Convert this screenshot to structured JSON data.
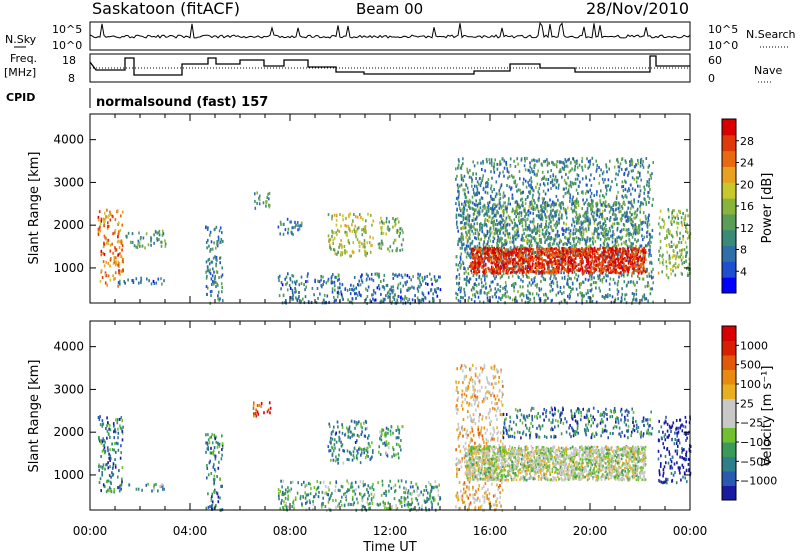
{
  "header": {
    "station": "Saskatoon (fitACF)",
    "beam": "Beam 00",
    "date": "28/Nov/2010"
  },
  "top_panels": {
    "nsky_label": "N.Sky",
    "nsearch_label": "N.Search",
    "freq_label_line1": "Freq.",
    "freq_label_line2": "[MHz]",
    "nave_label": "Nave",
    "cpid_label": "CPID",
    "cpid_text": "normalsound (fast) 157",
    "noise_ticks": [
      "10^5",
      "10^0"
    ],
    "freq_ticks": [
      "18",
      "8"
    ],
    "nave_ticks": [
      "60",
      "0"
    ],
    "colors": {
      "line": "#000000"
    }
  },
  "chart_data": [
    {
      "type": "heatmap",
      "name": "power-panel",
      "xlabel": "",
      "ylabel": "Slant Range [km]",
      "xlim": [
        0,
        24
      ],
      "ylim": [
        180,
        4600
      ],
      "y_ticks": [
        "1000",
        "2000",
        "3000",
        "4000"
      ],
      "y_tick_values": [
        1000,
        2000,
        3000,
        4000
      ],
      "colorbar_label": "Power [dB]",
      "colorbar_ticks": [
        "28",
        "24",
        "20",
        "16",
        "12",
        "8",
        "4"
      ],
      "colorbar_colors": [
        "#0000ff",
        "#1f4fd0",
        "#2f6fa8",
        "#3a8a78",
        "#5a9e55",
        "#88b43c",
        "#c8c82a",
        "#e8a020",
        "#e86a10",
        "#e03a0a",
        "#d80000"
      ],
      "scatter_regions": [
        {
          "x": [
            0.3,
            1.3
          ],
          "y": [
            600,
            2400
          ],
          "level": 0.75
        },
        {
          "x": [
            1.1,
            3.0
          ],
          "y": [
            650,
            820
          ],
          "level": 0.25
        },
        {
          "x": [
            1.4,
            3.0
          ],
          "y": [
            1500,
            1900
          ],
          "level": 0.35
        },
        {
          "x": [
            6.5,
            7.2
          ],
          "y": [
            2400,
            2800
          ],
          "level": 0.35
        },
        {
          "x": [
            4.6,
            5.3
          ],
          "y": [
            200,
            2000
          ],
          "level": 0.3
        },
        {
          "x": [
            7.5,
            8.5
          ],
          "y": [
            1800,
            2200
          ],
          "level": 0.3
        },
        {
          "x": [
            9.5,
            11.3
          ],
          "y": [
            1300,
            2300
          ],
          "level": 0.55
        },
        {
          "x": [
            11.5,
            12.5
          ],
          "y": [
            1400,
            2200
          ],
          "level": 0.45
        },
        {
          "x": [
            7.5,
            14.0
          ],
          "y": [
            200,
            900
          ],
          "level": 0.25
        },
        {
          "x": [
            14.8,
            22.0
          ],
          "y": [
            1300,
            2600
          ],
          "level": 0.4
        },
        {
          "x": [
            14.6,
            22.5
          ],
          "y": [
            200,
            3600
          ],
          "level": 0.3
        },
        {
          "x": [
            22.7,
            24.0
          ],
          "y": [
            800,
            2400
          ],
          "level": 0.5
        }
      ],
      "strong_band": {
        "x": [
          15.2,
          22.2
        ],
        "y": [
          900,
          1500
        ],
        "level": 0.9
      }
    },
    {
      "type": "heatmap",
      "name": "velocity-panel",
      "xlabel": "Time UT",
      "ylabel": "Slant Range [km]",
      "xlim": [
        0,
        24
      ],
      "ylim": [
        180,
        4600
      ],
      "x_ticks": [
        "00:00",
        "04:00",
        "08:00",
        "12:00",
        "16:00",
        "20:00",
        "00:00"
      ],
      "x_tick_values": [
        0,
        4,
        8,
        12,
        16,
        20,
        24
      ],
      "y_ticks": [
        "1000",
        "2000",
        "3000",
        "4000"
      ],
      "y_tick_values": [
        1000,
        2000,
        3000,
        4000
      ],
      "colorbar_label": "Velocity [m s⁻¹]",
      "colorbar_ticks": [
        "1000",
        "500",
        "100",
        "25",
        "−25",
        "−100",
        "−500",
        "−1000"
      ],
      "colorbar_colors": [
        "#1a1aa0",
        "#2a5ab0",
        "#2f7f8a",
        "#3a9a5a",
        "#70c030",
        "#c8c8c8",
        "#c8c8c8",
        "#e8b020",
        "#e88a10",
        "#e05a0a",
        "#d82000",
        "#d80000"
      ],
      "scatter_regions": [
        {
          "x": [
            0.3,
            1.3
          ],
          "y": [
            600,
            2400
          ],
          "level": 0.2
        },
        {
          "x": [
            1.1,
            3.0
          ],
          "y": [
            650,
            820
          ],
          "level": 0.3
        },
        {
          "x": [
            6.5,
            7.2
          ],
          "y": [
            2400,
            2800
          ],
          "level": 0.85
        },
        {
          "x": [
            4.6,
            5.3
          ],
          "y": [
            200,
            2000
          ],
          "level": 0.2
        },
        {
          "x": [
            9.5,
            11.3
          ],
          "y": [
            1300,
            2300
          ],
          "level": 0.25
        },
        {
          "x": [
            11.5,
            12.5
          ],
          "y": [
            1400,
            2200
          ],
          "level": 0.3
        },
        {
          "x": [
            7.5,
            14.0
          ],
          "y": [
            200,
            900
          ],
          "level": 0.3
        },
        {
          "x": [
            14.6,
            16.5
          ],
          "y": [
            200,
            3600
          ],
          "level": 0.6
        },
        {
          "x": [
            16.5,
            22.5
          ],
          "y": [
            1900,
            2600
          ],
          "level": 0.2
        },
        {
          "x": [
            22.7,
            24.0
          ],
          "y": [
            800,
            2400
          ],
          "level": 0.05
        }
      ],
      "strong_band": {
        "x": [
          15.0,
          22.2
        ],
        "y": [
          900,
          1700
        ],
        "level": 0.47
      }
    }
  ]
}
